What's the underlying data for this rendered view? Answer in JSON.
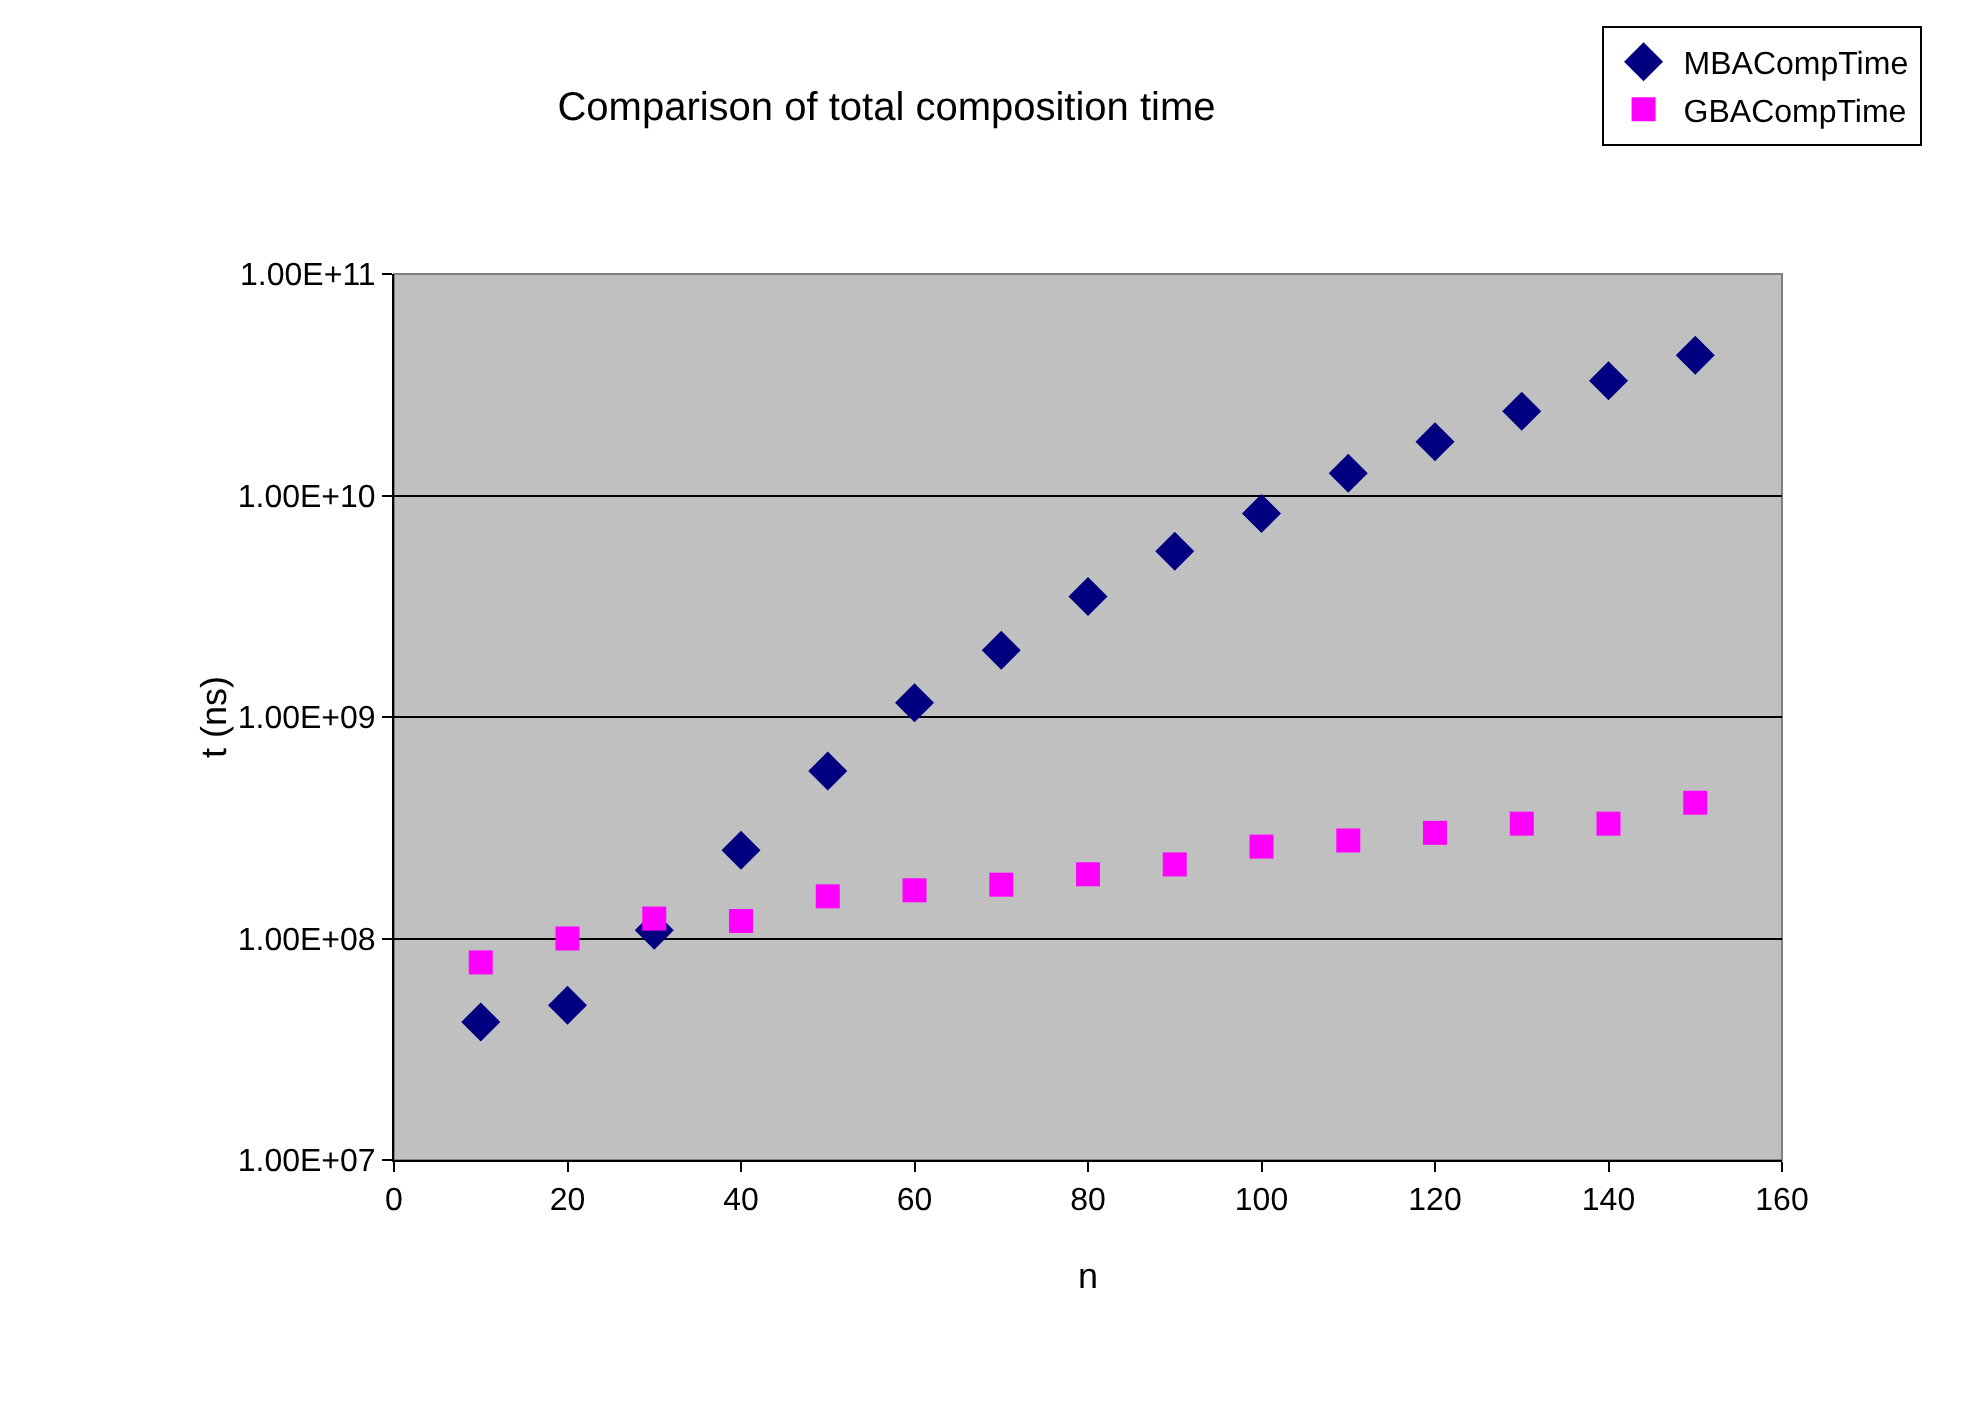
{
  "chart_data": {
    "type": "scatter",
    "title": "Comparison of total composition time",
    "xlabel": "n",
    "ylabel": "t (ns)",
    "log": "y",
    "grid": "y",
    "legend": "top right",
    "xlim": [
      0,
      160
    ],
    "xticks": [
      0,
      20,
      40,
      60,
      80,
      100,
      120,
      140,
      160
    ],
    "ylim": [
      10000000,
      100000000000
    ],
    "yticks": [
      {
        "value": 10000000,
        "label": "1.00E+07"
      },
      {
        "value": 100000000,
        "label": "1.00E+08"
      },
      {
        "value": 1000000000,
        "label": "1.00E+09"
      },
      {
        "value": 10000000000,
        "label": "1.00E+10"
      },
      {
        "value": 100000000000,
        "label": "1.00E+11"
      }
    ],
    "x": [
      10,
      20,
      30,
      40,
      50,
      60,
      70,
      80,
      90,
      100,
      110,
      120,
      130,
      140,
      150
    ],
    "series": [
      {
        "name": "MBACompTime",
        "color": "#000080",
        "marker": "diamond",
        "values": [
          42000000,
          50000000,
          109000000,
          250000000,
          570000000,
          1160000000,
          2000000000,
          3500000000,
          5600000000,
          8300000000,
          12600000000,
          17500000000,
          24000000000,
          33000000000,
          43000000000
        ]
      },
      {
        "name": "GBACompTime",
        "color": "#ff00ff",
        "marker": "square",
        "values": [
          78000000,
          100000000,
          123000000,
          120000000,
          155000000,
          165000000,
          175000000,
          195000000,
          216000000,
          260000000,
          277000000,
          300000000,
          330000000,
          330000000,
          410000000
        ]
      }
    ]
  }
}
